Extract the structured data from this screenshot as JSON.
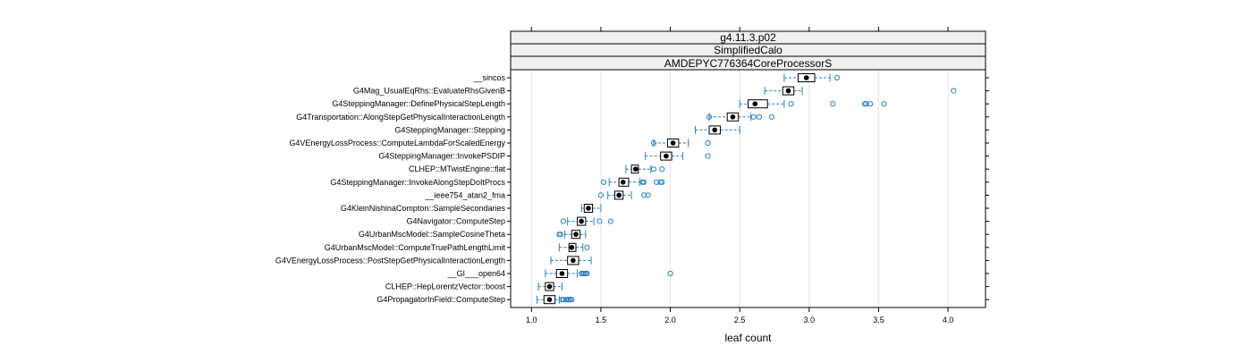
{
  "chart_data": {
    "type": "boxplot",
    "strips": [
      "g4.11.3.p02",
      "SimplifiedCalo",
      "AMDEPYC776364CoreProcessorS"
    ],
    "xlabel": "leaf count",
    "xlim": [
      0.85,
      4.27
    ],
    "xticks": [
      1.0,
      1.5,
      2.0,
      2.5,
      3.0,
      3.5,
      4.0
    ],
    "xtick_labels": [
      "1.0",
      "1.5",
      "2.0",
      "2.5",
      "3.0",
      "3.5",
      "4.0"
    ],
    "grid": true,
    "colors": {
      "box": "#2b7fbf",
      "median": "#000000",
      "grid": "#e6e6e6",
      "strip_bg": "#f0f0f0"
    },
    "categories": [
      {
        "name": "__sincos",
        "wlo": 2.82,
        "q1": 2.92,
        "med": 2.98,
        "q3": 3.04,
        "whi": 3.15,
        "outliers": [
          3.2
        ]
      },
      {
        "name": "G4Mag_UsualEqRhs::EvaluateRhsGivenB",
        "wlo": 2.68,
        "q1": 2.81,
        "med": 2.85,
        "q3": 2.89,
        "whi": 2.95,
        "outliers": [
          4.04
        ]
      },
      {
        "name": "G4SteppingManager::DefinePhysicalStepLength",
        "wlo": 2.5,
        "q1": 2.56,
        "med": 2.61,
        "q3": 2.7,
        "whi": 2.82,
        "outliers": [
          2.87,
          3.17,
          3.4,
          3.41,
          3.44,
          3.54
        ]
      },
      {
        "name": "G4Transportation::AlongStepGetPhysicalInteractionLength",
        "wlo": 2.28,
        "q1": 2.41,
        "med": 2.45,
        "q3": 2.49,
        "whi": 2.58,
        "outliers": [
          2.28,
          2.6,
          2.64,
          2.73
        ]
      },
      {
        "name": "G4SteppingManager::Stepping",
        "wlo": 2.18,
        "q1": 2.28,
        "med": 2.32,
        "q3": 2.36,
        "whi": 2.5,
        "outliers": []
      },
      {
        "name": "G4VEnergyLossProcess::ComputeLambdaForScaledEnergy",
        "wlo": 1.88,
        "q1": 1.98,
        "med": 2.02,
        "q3": 2.06,
        "whi": 2.13,
        "outliers": [
          1.88,
          2.27
        ]
      },
      {
        "name": "G4SteppingManager::InvokePSDIP",
        "wlo": 1.82,
        "q1": 1.93,
        "med": 1.97,
        "q3": 2.01,
        "whi": 2.09,
        "outliers": [
          2.27
        ]
      },
      {
        "name": "CLHEP::MTwistEngine::flat",
        "wlo": 1.68,
        "q1": 1.72,
        "med": 1.75,
        "q3": 1.77,
        "whi": 1.86,
        "outliers": [
          1.88,
          1.94
        ]
      },
      {
        "name": "G4SteppingManager::InvokeAlongStepDoItProcs",
        "wlo": 1.56,
        "q1": 1.63,
        "med": 1.66,
        "q3": 1.7,
        "whi": 1.78,
        "outliers": [
          1.52,
          1.8,
          1.81,
          1.9,
          1.93,
          1.94
        ]
      },
      {
        "name": "__ieee754_atan2_fma",
        "wlo": 1.55,
        "q1": 1.6,
        "med": 1.63,
        "q3": 1.66,
        "whi": 1.72,
        "outliers": [
          1.5,
          1.81,
          1.84
        ]
      },
      {
        "name": "G4KleinNishinaCompton::SampleSecondaries",
        "wlo": 1.36,
        "q1": 1.38,
        "med": 1.41,
        "q3": 1.44,
        "whi": 1.5,
        "outliers": []
      },
      {
        "name": "G4Navigator::ComputeStep",
        "wlo": 1.26,
        "q1": 1.33,
        "med": 1.36,
        "q3": 1.39,
        "whi": 1.45,
        "outliers": [
          1.23,
          1.49,
          1.57
        ]
      },
      {
        "name": "G4UrbanMscModel::SampleCosineTheta",
        "wlo": 1.24,
        "q1": 1.29,
        "med": 1.32,
        "q3": 1.35,
        "whi": 1.39,
        "outliers": [
          1.2,
          1.21
        ]
      },
      {
        "name": "G4UrbanMscModel::ComputeTruePathLengthLimit",
        "wlo": 1.2,
        "q1": 1.27,
        "med": 1.29,
        "q3": 1.32,
        "whi": 1.37,
        "outliers": [
          1.4
        ]
      },
      {
        "name": "G4VEnergyLossProcess::PostStepGetPhysicalInteractionLength",
        "wlo": 1.14,
        "q1": 1.26,
        "med": 1.3,
        "q3": 1.34,
        "whi": 1.43,
        "outliers": []
      },
      {
        "name": "__GI___open64",
        "wlo": 1.1,
        "q1": 1.18,
        "med": 1.22,
        "q3": 1.26,
        "whi": 1.33,
        "outliers": [
          1.36,
          1.37,
          1.38,
          1.39,
          1.4,
          2.0
        ]
      },
      {
        "name": "CLHEP::HepLorentzVector::boost",
        "wlo": 1.05,
        "q1": 1.1,
        "med": 1.13,
        "q3": 1.16,
        "whi": 1.22,
        "outliers": []
      },
      {
        "name": "G4PropagatorInField::ComputeStep",
        "wlo": 1.04,
        "q1": 1.09,
        "med": 1.13,
        "q3": 1.17,
        "whi": 1.2,
        "outliers": [
          1.22,
          1.23,
          1.25,
          1.26,
          1.27,
          1.28,
          1.29
        ]
      }
    ]
  }
}
